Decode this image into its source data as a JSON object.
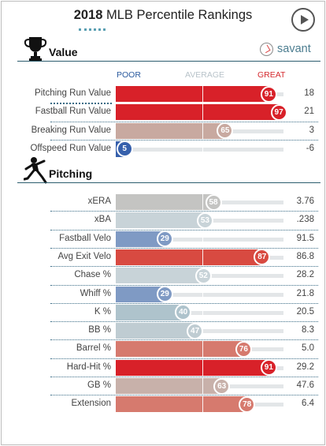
{
  "header": {
    "year": "2018",
    "title_rest": "MLB Percentile Rankings"
  },
  "value_section": {
    "title": "Value",
    "brand": "savant",
    "icon": "trophy-icon",
    "scale": {
      "poor": "POOR",
      "average": "AVERAGE",
      "great": "GREAT"
    },
    "rows": [
      {
        "label": "Pitching Run Value",
        "percentile": 91,
        "value": "18",
        "color": "#d82129"
      },
      {
        "label": "Fastball Run Value",
        "percentile": 97,
        "value": "21",
        "color": "#d82129"
      },
      {
        "label": "Breaking Run Value",
        "percentile": 65,
        "value": "3",
        "color": "#c8a9a0"
      },
      {
        "label": "Offspeed Run Value",
        "percentile": 5,
        "value": "-6",
        "color": "#3660ac"
      }
    ]
  },
  "pitching_section": {
    "title": "Pitching",
    "icon": "pitcher-icon",
    "rows": [
      {
        "label": "xERA",
        "percentile": 58,
        "value": "3.76",
        "color": "#c4c4c2"
      },
      {
        "label": "xBA",
        "percentile": 53,
        "value": ".238",
        "color": "#c8d3d8"
      },
      {
        "label": "Fastball Velo",
        "percentile": 29,
        "value": "91.5",
        "color": "#7f9ac4"
      },
      {
        "label": "Avg Exit Velo",
        "percentile": 87,
        "value": "86.8",
        "color": "#d84a41"
      },
      {
        "label": "Chase %",
        "percentile": 52,
        "value": "28.2",
        "color": "#c8d3d8"
      },
      {
        "label": "Whiff %",
        "percentile": 29,
        "value": "21.8",
        "color": "#7f9ac4"
      },
      {
        "label": "K %",
        "percentile": 40,
        "value": "20.5",
        "color": "#aec3cc"
      },
      {
        "label": "BB %",
        "percentile": 47,
        "value": "8.3",
        "color": "#bfccd2"
      },
      {
        "label": "Barrel %",
        "percentile": 76,
        "value": "5.0",
        "color": "#d67a6e"
      },
      {
        "label": "Hard-Hit %",
        "percentile": 91,
        "value": "29.2",
        "color": "#d82129"
      },
      {
        "label": "GB %",
        "percentile": 63,
        "value": "47.6",
        "color": "#c8b1aa"
      },
      {
        "label": "Extension",
        "percentile": 78,
        "value": "6.4",
        "color": "#d67a6e"
      }
    ]
  }
}
